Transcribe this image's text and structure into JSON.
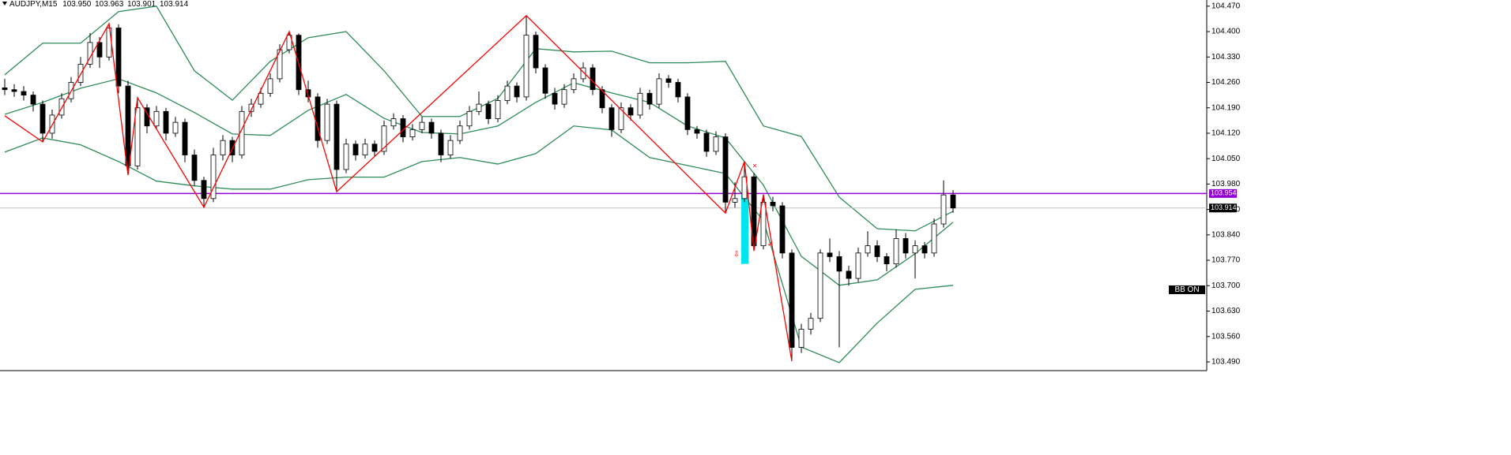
{
  "chart_data": {
    "type": "candlestick",
    "header": {
      "symbol": "AUDJPY,M15",
      "ohlc": [
        "103.950",
        "103.963",
        "103.901",
        "103.914"
      ]
    },
    "ylim": [
      103.466,
      104.487
    ],
    "yticks": [
      {
        "value": 104.47,
        "label": "104.470"
      },
      {
        "value": 104.4,
        "label": "104.400"
      },
      {
        "value": 104.33,
        "label": "104.330"
      },
      {
        "value": 104.26,
        "label": "104.260"
      },
      {
        "value": 104.19,
        "label": "104.190"
      },
      {
        "value": 104.12,
        "label": "104.120"
      },
      {
        "value": 104.05,
        "label": "104.050"
      },
      {
        "value": 103.98,
        "label": "103.980"
      },
      {
        "value": 103.91,
        "label": "103.910"
      },
      {
        "value": 103.84,
        "label": "103.840"
      },
      {
        "value": 103.77,
        "label": "103.770"
      },
      {
        "value": 103.7,
        "label": "103.700"
      },
      {
        "value": 103.63,
        "label": "103.630"
      },
      {
        "value": 103.56,
        "label": "103.560"
      },
      {
        "value": 103.49,
        "label": "103.490"
      }
    ],
    "candle_colors": {
      "up": "#ffffff",
      "down": "#000000",
      "outline": "#000000"
    },
    "candles": [
      [
        104.245,
        104.27,
        104.225,
        104.24
      ],
      [
        104.24,
        104.255,
        104.22,
        104.235
      ],
      [
        104.235,
        104.25,
        104.21,
        104.225
      ],
      [
        104.225,
        104.235,
        104.18,
        104.2
      ],
      [
        104.2,
        104.21,
        104.096,
        104.12
      ],
      [
        104.12,
        104.185,
        104.105,
        104.17
      ],
      [
        104.17,
        104.23,
        104.16,
        104.215
      ],
      [
        104.215,
        104.275,
        104.205,
        104.26
      ],
      [
        104.26,
        104.33,
        104.25,
        104.31
      ],
      [
        104.31,
        104.396,
        104.3,
        104.37
      ],
      [
        104.37,
        104.385,
        104.3,
        104.33
      ],
      [
        104.33,
        104.422,
        104.32,
        104.41
      ],
      [
        104.41,
        104.42,
        104.23,
        104.25
      ],
      [
        104.25,
        104.265,
        104.005,
        104.03
      ],
      [
        104.03,
        104.218,
        104.02,
        104.19
      ],
      [
        104.19,
        104.2,
        104.12,
        104.14
      ],
      [
        104.14,
        104.195,
        104.13,
        104.18
      ],
      [
        104.18,
        104.19,
        104.1,
        104.12
      ],
      [
        104.12,
        104.165,
        104.11,
        104.15
      ],
      [
        104.15,
        104.16,
        104.04,
        104.06
      ],
      [
        104.06,
        104.075,
        103.975,
        103.99
      ],
      [
        103.99,
        104.0,
        103.916,
        103.94
      ],
      [
        103.94,
        104.08,
        103.93,
        104.06
      ],
      [
        104.06,
        104.115,
        104.045,
        104.1
      ],
      [
        104.1,
        104.11,
        104.04,
        104.06
      ],
      [
        104.06,
        104.195,
        104.05,
        104.18
      ],
      [
        104.18,
        104.215,
        104.165,
        104.2
      ],
      [
        104.2,
        104.245,
        104.19,
        104.23
      ],
      [
        104.23,
        104.285,
        104.22,
        104.27
      ],
      [
        104.27,
        104.365,
        104.26,
        104.35
      ],
      [
        104.35,
        104.4,
        104.34,
        104.39
      ],
      [
        104.39,
        104.395,
        104.225,
        104.24
      ],
      [
        104.24,
        104.265,
        104.205,
        104.22
      ],
      [
        104.22,
        104.23,
        104.08,
        104.1
      ],
      [
        104.1,
        104.215,
        104.09,
        104.2
      ],
      [
        104.2,
        104.21,
        103.959,
        104.02
      ],
      [
        104.02,
        104.105,
        104.01,
        104.09
      ],
      [
        104.09,
        104.1,
        104.045,
        104.06
      ],
      [
        104.06,
        104.105,
        104.05,
        104.09
      ],
      [
        104.09,
        104.1,
        104.055,
        104.07
      ],
      [
        104.07,
        104.155,
        104.06,
        104.14
      ],
      [
        104.14,
        104.175,
        104.13,
        104.16
      ],
      [
        104.16,
        104.17,
        104.095,
        104.11
      ],
      [
        104.11,
        104.145,
        104.1,
        104.13
      ],
      [
        104.13,
        104.165,
        104.12,
        104.15
      ],
      [
        104.15,
        104.16,
        104.105,
        104.12
      ],
      [
        104.12,
        104.13,
        104.04,
        104.06
      ],
      [
        104.06,
        104.115,
        104.05,
        104.1
      ],
      [
        104.1,
        104.155,
        104.09,
        104.14
      ],
      [
        104.14,
        104.195,
        104.13,
        104.18
      ],
      [
        104.18,
        104.235,
        104.17,
        104.2
      ],
      [
        104.2,
        104.21,
        104.145,
        104.16
      ],
      [
        104.16,
        104.225,
        104.15,
        104.21
      ],
      [
        104.21,
        104.265,
        104.2,
        104.25
      ],
      [
        104.25,
        104.26,
        104.205,
        104.22
      ],
      [
        104.22,
        104.444,
        104.21,
        104.39
      ],
      [
        104.39,
        104.4,
        104.285,
        104.3
      ],
      [
        104.3,
        104.31,
        104.215,
        104.23
      ],
      [
        104.23,
        104.245,
        104.185,
        104.2
      ],
      [
        104.2,
        104.255,
        104.19,
        104.24
      ],
      [
        104.24,
        104.285,
        104.23,
        104.27
      ],
      [
        104.27,
        104.315,
        104.26,
        104.3
      ],
      [
        104.3,
        104.31,
        104.225,
        104.24
      ],
      [
        104.24,
        104.25,
        104.175,
        104.19
      ],
      [
        104.19,
        104.2,
        104.11,
        104.13
      ],
      [
        104.13,
        104.205,
        104.12,
        104.19
      ],
      [
        104.19,
        104.2,
        104.155,
        104.17
      ],
      [
        104.17,
        104.245,
        104.16,
        104.23
      ],
      [
        104.23,
        104.24,
        104.185,
        104.2
      ],
      [
        104.2,
        104.285,
        104.19,
        104.27
      ],
      [
        104.27,
        104.28,
        104.245,
        104.26
      ],
      [
        104.26,
        104.27,
        104.205,
        104.22
      ],
      [
        104.22,
        104.23,
        104.115,
        104.13
      ],
      [
        104.13,
        104.14,
        104.105,
        104.12
      ],
      [
        104.12,
        104.13,
        104.055,
        104.07
      ],
      [
        104.07,
        104.125,
        104.06,
        104.11
      ],
      [
        104.11,
        104.12,
        103.9,
        103.93
      ],
      [
        103.93,
        103.985,
        103.915,
        103.94
      ],
      [
        103.94,
        104.042,
        103.93,
        104.0
      ],
      [
        104.0,
        104.01,
        103.796,
        103.81
      ],
      [
        103.81,
        103.951,
        103.8,
        103.93
      ],
      [
        103.93,
        103.945,
        103.905,
        103.92
      ],
      [
        103.92,
        103.93,
        103.775,
        103.79
      ],
      [
        103.79,
        103.8,
        103.492,
        103.53
      ],
      [
        103.53,
        103.595,
        103.515,
        103.58
      ],
      [
        103.58,
        103.625,
        103.565,
        103.61
      ],
      [
        103.61,
        103.8,
        103.6,
        103.79
      ],
      [
        103.79,
        103.83,
        103.765,
        103.78
      ],
      [
        103.78,
        103.795,
        103.53,
        103.74
      ],
      [
        103.74,
        103.755,
        103.7,
        103.72
      ],
      [
        103.72,
        103.805,
        103.71,
        103.79
      ],
      [
        103.79,
        103.85,
        103.78,
        103.81
      ],
      [
        103.81,
        103.825,
        103.765,
        103.78
      ],
      [
        103.78,
        103.79,
        103.74,
        103.76
      ],
      [
        103.76,
        103.855,
        103.75,
        103.83
      ],
      [
        103.83,
        103.845,
        103.775,
        103.79
      ],
      [
        103.79,
        103.825,
        103.72,
        103.81
      ],
      [
        103.81,
        103.82,
        103.775,
        103.79
      ],
      [
        103.79,
        103.885,
        103.78,
        103.87
      ],
      [
        103.87,
        103.99,
        103.86,
        103.95
      ],
      [
        103.95,
        103.963,
        103.901,
        103.914
      ]
    ],
    "bands": {
      "color": "#2e8b57",
      "x": [
        0,
        4,
        8,
        12,
        16,
        20,
        24,
        28,
        32,
        36,
        40,
        44,
        48,
        52,
        56,
        60,
        64,
        68,
        72,
        76,
        80,
        84,
        88,
        92,
        96,
        100
      ],
      "upper": [
        104.281,
        104.368,
        104.368,
        104.455,
        104.47,
        104.292,
        104.211,
        104.318,
        104.383,
        104.4,
        104.292,
        104.166,
        104.166,
        104.216,
        104.353,
        104.344,
        104.346,
        104.314,
        104.314,
        104.318,
        104.14,
        104.111,
        103.944,
        103.857,
        103.851,
        103.905
      ],
      "middle": [
        104.172,
        104.205,
        104.244,
        104.27,
        104.231,
        104.177,
        104.118,
        104.114,
        104.183,
        104.227,
        104.161,
        104.122,
        104.118,
        104.14,
        104.205,
        104.259,
        104.231,
        104.205,
        104.14,
        104.107,
        103.977,
        103.781,
        103.701,
        103.716,
        103.788,
        103.875
      ],
      "lower": [
        104.068,
        104.107,
        104.088,
        104.042,
        103.988,
        103.975,
        103.966,
        103.966,
        103.992,
        103.999,
        103.999,
        104.042,
        104.053,
        104.035,
        104.064,
        104.14,
        104.129,
        104.053,
        104.031,
        104.009,
        103.879,
        103.531,
        103.488,
        103.597,
        103.69,
        103.701
      ]
    },
    "zigzag": {
      "color": "#ff0000",
      "x": [
        0,
        4,
        11,
        13,
        14,
        21,
        30,
        35,
        55,
        76,
        78,
        79,
        80,
        83
      ],
      "values": [
        104.168,
        104.096,
        104.422,
        104.005,
        104.218,
        103.916,
        104.4,
        103.959,
        104.444,
        103.9,
        104.042,
        103.796,
        103.951,
        103.492
      ]
    },
    "price_lines": [
      {
        "value": 103.954,
        "label": "103.954",
        "color": "#9400d3"
      },
      {
        "value": 103.914,
        "label": "103.914",
        "color": "#c0c0c0"
      }
    ],
    "highlight": {
      "x": 78,
      "values": [
        103.95,
        103.76
      ],
      "color": "#00e5ee"
    },
    "indicator_label": "BB ON"
  }
}
